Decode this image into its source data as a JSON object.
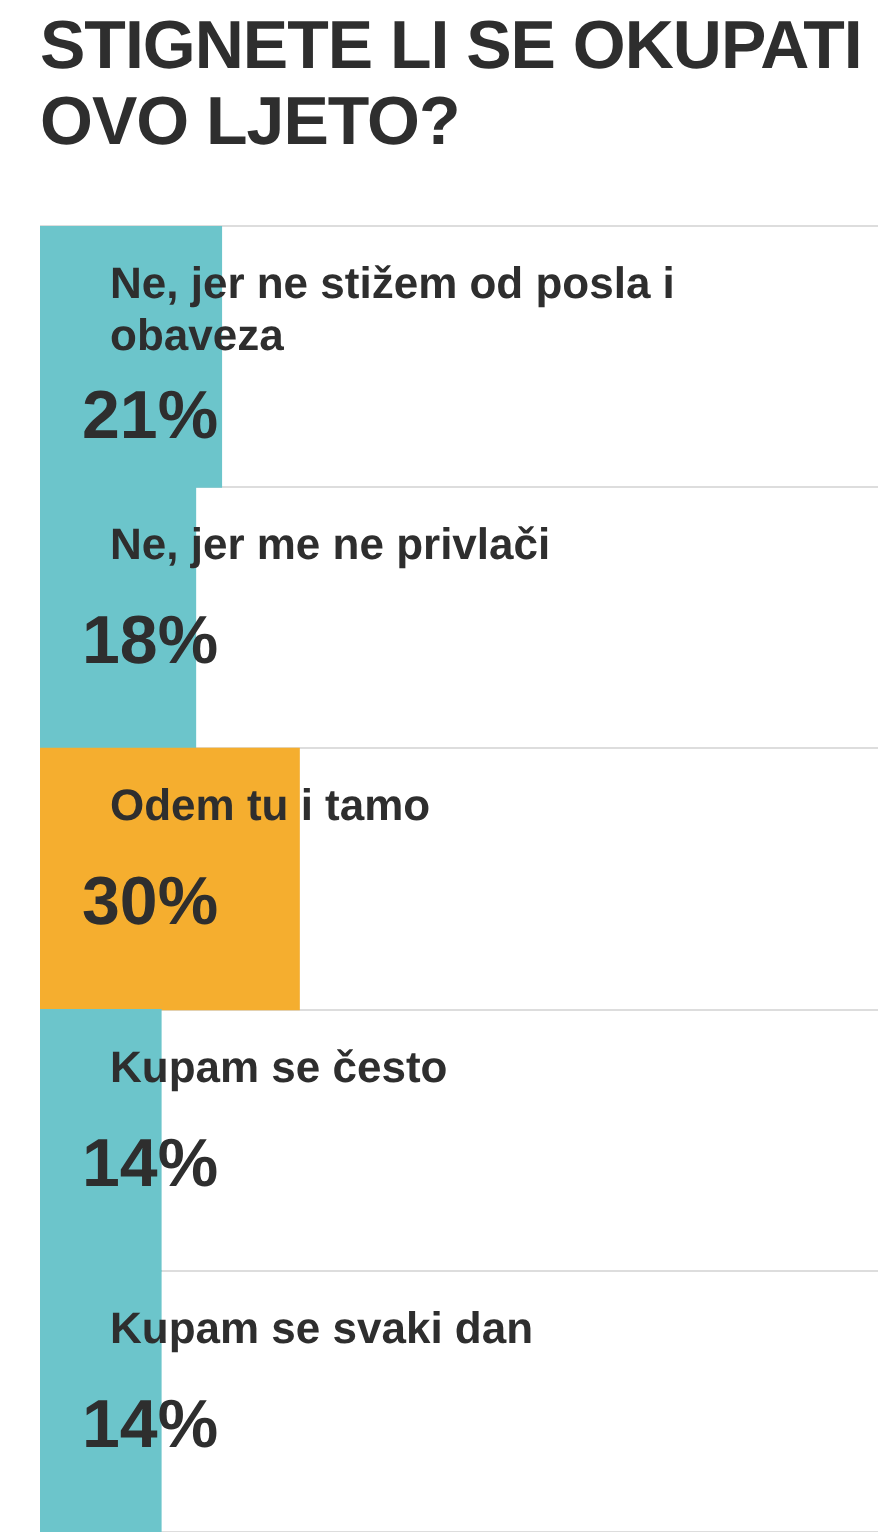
{
  "chart_data": {
    "type": "bar",
    "orientation": "horizontal",
    "title": "STIGNETE LI SE OKUPATI OVO LJETO?",
    "categories": [
      "Ne, jer ne stižem od posla i obaveza",
      "Ne, jer me ne privlači",
      "Odem tu i tamo",
      "Kupam se često",
      "Kupam se svaki dan"
    ],
    "values": [
      21,
      18,
      30,
      14,
      14
    ],
    "colors": [
      "#6cc5cb",
      "#6cc5cb",
      "#f5ae2f",
      "#6cc5cb",
      "#6cc5cb"
    ],
    "value_labels": [
      "21%",
      "18%",
      "30%",
      "14%",
      "14%"
    ],
    "tick_labels": "y",
    "grid": "y",
    "legend": false
  }
}
